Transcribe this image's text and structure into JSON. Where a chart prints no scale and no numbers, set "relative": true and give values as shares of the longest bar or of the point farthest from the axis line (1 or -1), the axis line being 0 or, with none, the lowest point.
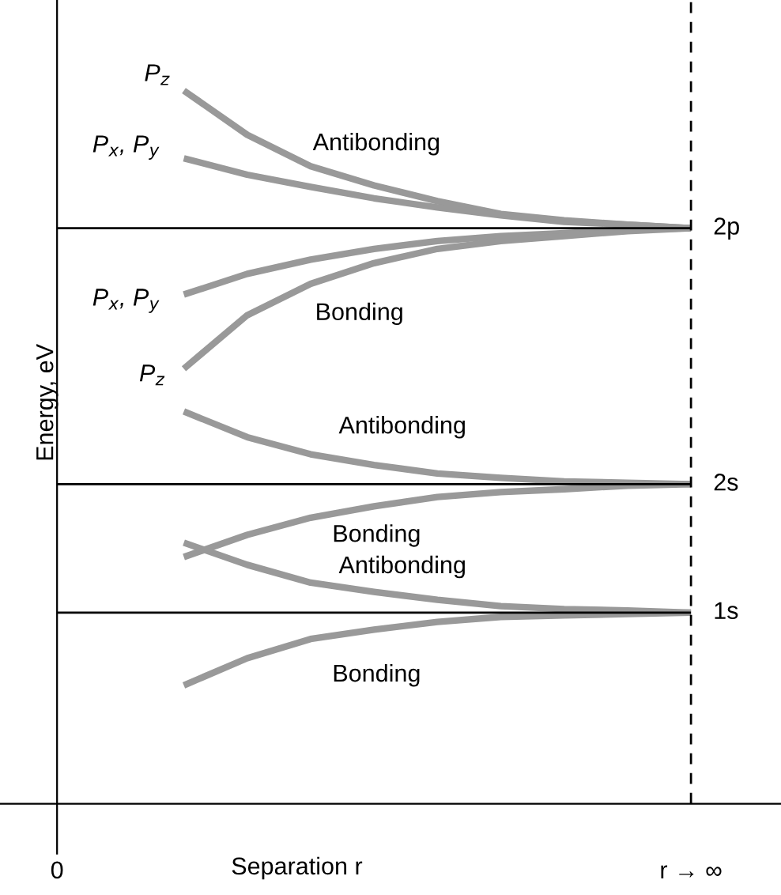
{
  "chart_data": {
    "type": "line",
    "relative": true,
    "xlabel": "Separation r",
    "ylabel": "Energy, eV",
    "categories": [
      "0",
      null,
      null,
      null,
      null,
      null,
      null,
      null,
      null,
      null,
      "r → ∞"
    ],
    "marker": "none",
    "line_style": "solid",
    "series": [
      {
        "color": "#999999",
        "values": [
          null,
          null,
          1.0,
          0.938,
          0.894,
          0.867,
          0.845,
          0.827,
          0.818,
          0.812,
          0.807
        ]
      },
      {
        "color": "#999999",
        "values": [
          null,
          null,
          0.905,
          0.882,
          0.865,
          0.849,
          0.836,
          0.825,
          0.816,
          0.812,
          0.807
        ]
      },
      {
        "color": "#999999",
        "values": [
          null,
          null,
          0.714,
          0.743,
          0.763,
          0.778,
          0.789,
          0.796,
          0.8,
          0.805,
          0.807
        ]
      },
      {
        "color": "#999999",
        "values": [
          null,
          null,
          0.61,
          0.685,
          0.729,
          0.758,
          0.778,
          0.789,
          0.796,
          0.803,
          0.807
        ]
      },
      {
        "color": "#999999",
        "values": [
          null,
          null,
          0.55,
          0.514,
          0.49,
          0.475,
          0.463,
          0.457,
          0.452,
          0.45,
          0.448
        ]
      },
      {
        "color": "#999999",
        "values": [
          null,
          null,
          0.346,
          0.377,
          0.401,
          0.417,
          0.43,
          0.437,
          0.441,
          0.446,
          0.448
        ]
      },
      {
        "color": "#999999",
        "values": [
          null,
          null,
          0.366,
          0.335,
          0.31,
          0.297,
          0.286,
          0.277,
          0.273,
          0.271,
          0.268
        ]
      },
      {
        "color": "#999999",
        "values": [
          null,
          null,
          0.166,
          0.204,
          0.231,
          0.244,
          0.255,
          0.262,
          0.264,
          0.266,
          0.268
        ]
      }
    ],
    "ref_lines": [
      {
        "axis": "y",
        "value": 0.807,
        "label": "2p",
        "color": "#000000",
        "line_style": "solid"
      },
      {
        "axis": "y",
        "value": 0.448,
        "label": "2s",
        "color": "#000000",
        "line_style": "solid"
      },
      {
        "axis": "y",
        "value": 0.268,
        "label": "1s",
        "color": "#000000",
        "line_style": "solid"
      },
      {
        "axis": "x",
        "value": "r → ∞",
        "label": null,
        "color": "#000000",
        "line_style": "dashed"
      }
    ],
    "annotations": [
      "P$_{z}$",
      "P$_{x}$, P$_{y}$",
      "Antibonding",
      "P$_{x}$, P$_{y}$",
      "Bonding",
      "P$_{z}$",
      "Antibonding",
      "Bonding",
      "Antibonding",
      "Bonding"
    ]
  }
}
